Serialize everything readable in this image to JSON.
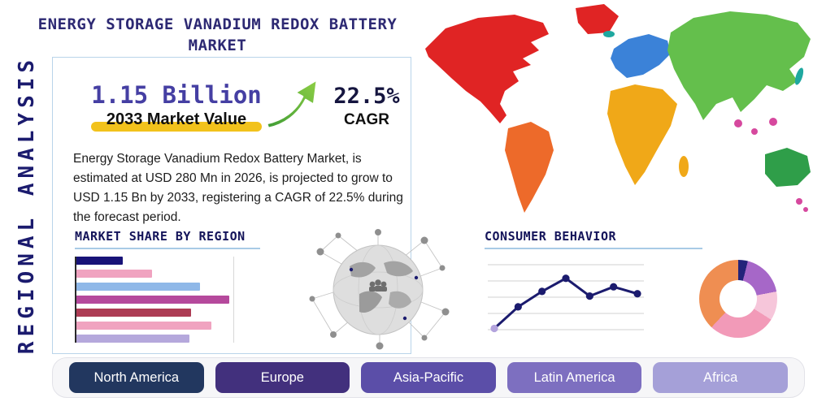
{
  "header": {
    "title_line1": "ENERGY STORAGE VANADIUM REDOX BATTERY",
    "title_line2": "MARKET",
    "side_label": "REGIONAL ANALYSIS"
  },
  "highlights": {
    "market_value": "1.15 Billion",
    "market_value_label": "2033 Market Value",
    "cagr_value": "22.5%",
    "cagr_label": "CAGR",
    "description": "Energy Storage Vanadium Redox Battery Market, is estimated at USD 280 Mn in 2026, is projected to grow to USD 1.15 Bn by 2033, registering a CAGR of 22.5% during the forecast period."
  },
  "sections": {
    "market_share_heading": "MARKET SHARE BY REGION",
    "consumer_behavior_heading": "CONSUMER BEHAVIOR"
  },
  "region_buttons": [
    "North America",
    "Europe",
    "Asia-Pacific",
    "Latin America",
    "Africa"
  ],
  "colors": {
    "accent_navy": "#1b1b6e",
    "accent_purple": "#453fa3",
    "highlight_yellow": "#f2c21c",
    "arrow_green": "#5aae3c",
    "button_colors": [
      "#22375f",
      "#42307d",
      "#5b4ea8",
      "#7d6fc0",
      "#a5a0d8"
    ]
  },
  "chart_data": [
    {
      "name": "market_share_by_region",
      "type": "bar",
      "orientation": "horizontal",
      "title": "MARKET SHARE BY REGION",
      "note": "seven unlabeled horizontal bars, relative lengths estimated as % of axis width",
      "values": [
        29,
        47,
        77,
        95,
        71,
        84,
        70
      ],
      "colors": [
        "#181378",
        "#f0a3c0",
        "#8fb8e8",
        "#b5499c",
        "#ad3c54",
        "#f0a3c0",
        "#b5a8dc"
      ],
      "xlim": [
        0,
        100
      ],
      "grid": false
    },
    {
      "name": "consumer_behavior_trend",
      "type": "line",
      "title": "CONSUMER BEHAVIOR",
      "x": [
        1,
        2,
        3,
        4,
        5,
        6,
        7
      ],
      "values": [
        10,
        38,
        58,
        75,
        52,
        64,
        55
      ],
      "line_color": "#1b1b6e",
      "point_colors": [
        "#b3a3dd",
        "#1b1b6e",
        "#1b1b6e",
        "#1b1b6e",
        "#1b1b6e",
        "#1b1b6e",
        "#1b1b6e"
      ],
      "grid": true,
      "gridline_count": 5
    },
    {
      "name": "region_donut",
      "type": "pie",
      "donut": true,
      "note": "unlabeled donut, segment shares estimated, clockwise from top",
      "segments": [
        {
          "label": "navy-sliver",
          "value": 4,
          "color": "#23237a"
        },
        {
          "label": "purple",
          "value": 18,
          "color": "#a667c8"
        },
        {
          "label": "light-pink",
          "value": 12,
          "color": "#f6c6da"
        },
        {
          "label": "pink",
          "value": 28,
          "color": "#f29ab8"
        },
        {
          "label": "orange",
          "value": 38,
          "color": "#ef8e52"
        }
      ]
    }
  ]
}
